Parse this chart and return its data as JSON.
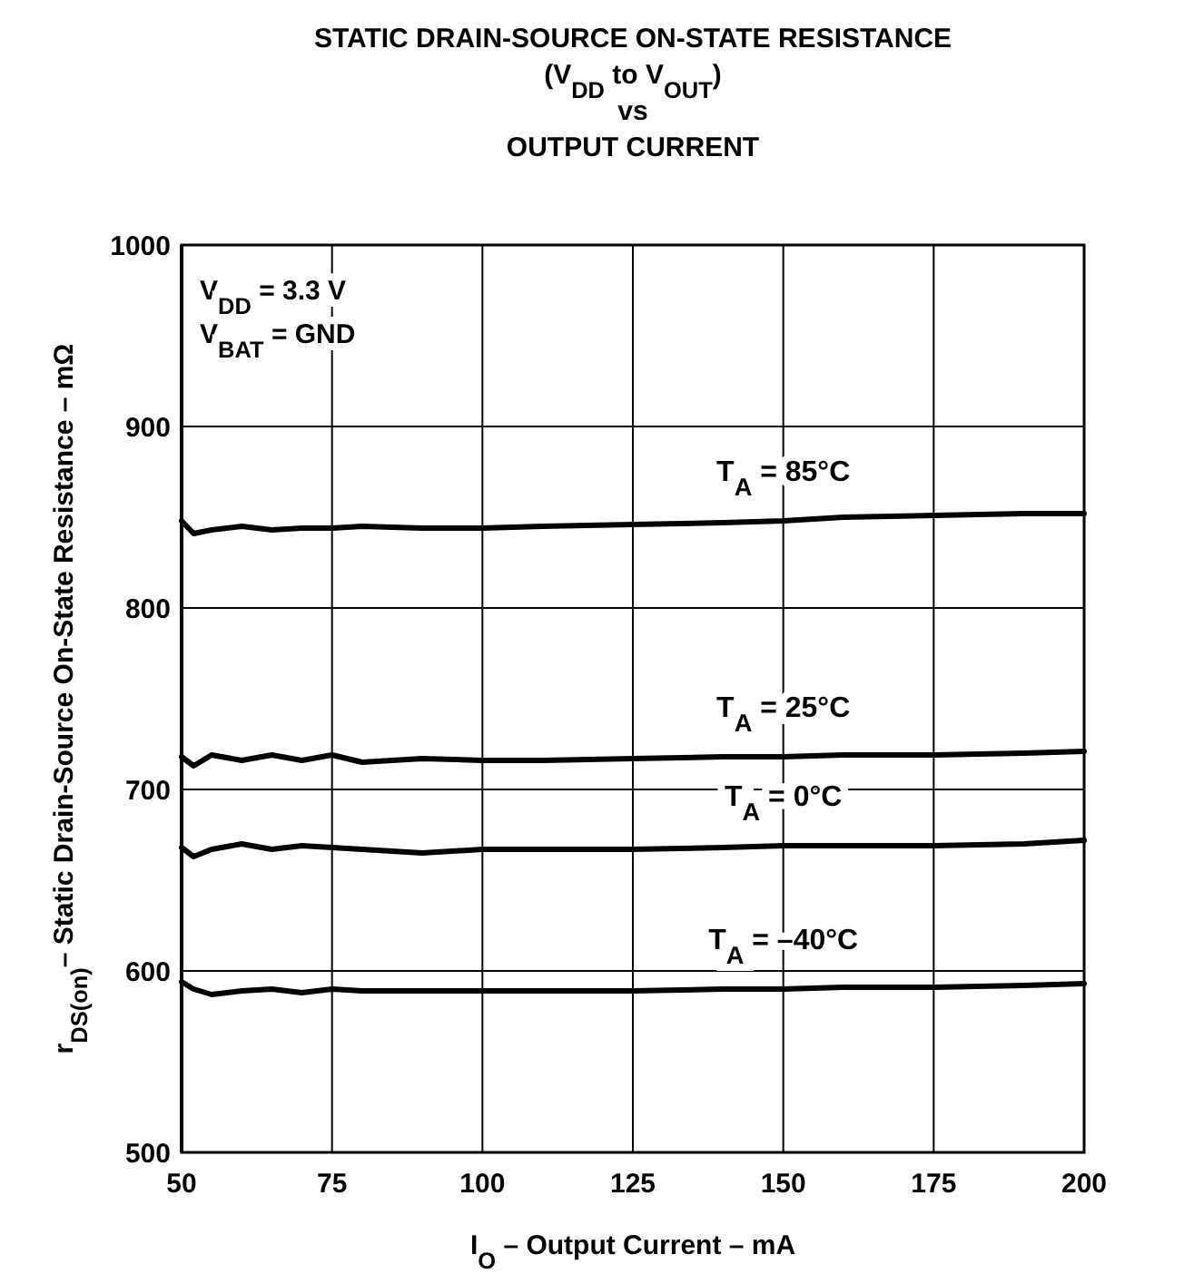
{
  "chart_data": {
    "type": "line",
    "title": "STATIC DRAIN-SOURCE ON-STATE RESISTANCE\n(V$_{DD}$ to V$_{OUT}$)\nvs\nOUTPUT CURRENT",
    "xlabel": "I$_{O}$ – Output Current – mA",
    "ylabel": "r$_{DS(on)}$– Static Drain-Source On-State Resistance – mΩ",
    "x": [
      50,
      52,
      55,
      60,
      65,
      70,
      75,
      80,
      90,
      100,
      110,
      125,
      140,
      150,
      160,
      175,
      190,
      200
    ],
    "series": [
      {
        "name": "T$_{A}$ = 85°C",
        "color": "#000000",
        "values": [
          848,
          841,
          843,
          845,
          843,
          844,
          844,
          845,
          844,
          844,
          845,
          846,
          847,
          848,
          850,
          851,
          852,
          852
        ]
      },
      {
        "name": "T$_{A}$ = 25°C",
        "color": "#000000",
        "values": [
          718,
          713,
          719,
          716,
          719,
          716,
          719,
          715,
          717,
          716,
          716,
          717,
          718,
          718,
          719,
          719,
          720,
          721
        ]
      },
      {
        "name": "T$_{A}$ = 0°C",
        "color": "#000000",
        "values": [
          668,
          663,
          667,
          670,
          667,
          669,
          668,
          667,
          665,
          667,
          667,
          667,
          668,
          669,
          669,
          669,
          670,
          672
        ]
      },
      {
        "name": "T$_{A}$ = –40°C",
        "color": "#000000",
        "values": [
          594,
          590,
          587,
          589,
          590,
          588,
          590,
          589,
          589,
          589,
          589,
          589,
          590,
          590,
          591,
          591,
          592,
          593
        ]
      }
    ],
    "xlim": [
      50,
      200
    ],
    "xticks": [
      50,
      75,
      100,
      125,
      150,
      175,
      200
    ],
    "ylim": [
      500,
      1000
    ],
    "yticks": [
      500,
      600,
      700,
      800,
      900,
      1000
    ],
    "grid": true,
    "line_style": "solid",
    "marker": "none",
    "annotations": [
      "V$_{DD}$ = 3.3 V",
      "V$_{BAT}$ = GND"
    ]
  }
}
